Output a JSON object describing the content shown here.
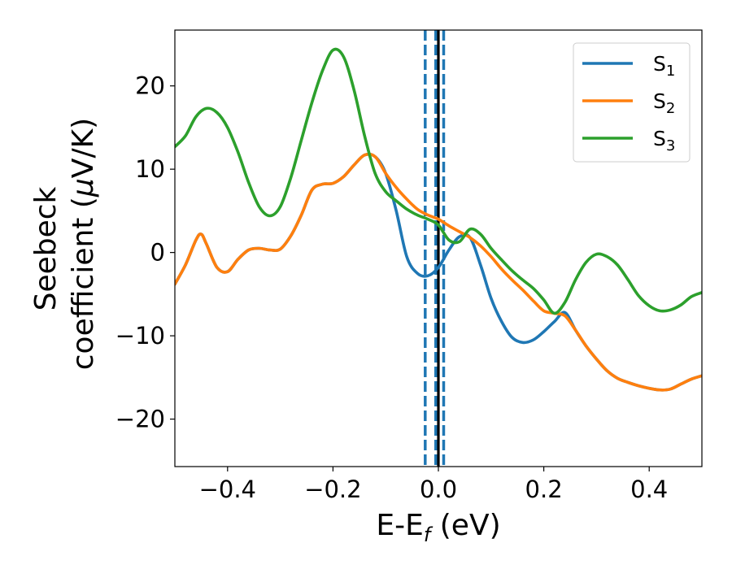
{
  "chart_data": {
    "type": "line",
    "xlabel": "E-E",
    "xlabel_sub": "f",
    "xlabel_unit": " (eV)",
    "ylabel_line1": "Seebeck",
    "ylabel_line2": "coefficient  (",
    "ylabel_mu": "μ",
    "ylabel_unit": "V/K)",
    "xlim": [
      -0.5,
      0.5
    ],
    "ylim": [
      -25.7,
      26.7
    ],
    "xticks": [
      -0.4,
      -0.2,
      0.0,
      0.2,
      0.4
    ],
    "xtick_labels": [
      "−0.4",
      "−0.2",
      "0.0",
      "0.2",
      "0.4"
    ],
    "yticks": [
      -20,
      -10,
      0,
      10,
      20
    ],
    "ytick_labels": [
      "−20",
      "−10",
      "0",
      "10",
      "20"
    ],
    "grid": false,
    "legend_position": "top-right",
    "vlines": [
      {
        "x": -0.025,
        "style": "dashed",
        "color": "#1f77b4"
      },
      {
        "x": -0.005,
        "style": "dashed",
        "color": "#1f77b4"
      },
      {
        "x": 0.0,
        "style": "solid",
        "color": "#000000"
      },
      {
        "x": 0.01,
        "style": "dashed",
        "color": "#1f77b4"
      }
    ],
    "series": [
      {
        "name": "S",
        "name_sub": "1",
        "color": "#1f77b4",
        "x": [
          -0.5,
          -0.48,
          -0.46,
          -0.45,
          -0.44,
          -0.42,
          -0.4,
          -0.38,
          -0.36,
          -0.34,
          -0.32,
          -0.3,
          -0.28,
          -0.26,
          -0.24,
          -0.22,
          -0.2,
          -0.18,
          -0.16,
          -0.14,
          -0.12,
          -0.1,
          -0.08,
          -0.06,
          -0.04,
          -0.02,
          0.0,
          0.02,
          0.04,
          0.06,
          0.08,
          0.1,
          0.12,
          0.14,
          0.16,
          0.18,
          0.2,
          0.22,
          0.24,
          0.26,
          0.28,
          0.3,
          0.32,
          0.34,
          0.36,
          0.38,
          0.4,
          0.42,
          0.44,
          0.46,
          0.48,
          0.5
        ],
        "y": [
          -3.8,
          -1.5,
          1.5,
          2.2,
          1.0,
          -1.8,
          -2.3,
          -0.8,
          0.3,
          0.5,
          0.3,
          0.4,
          2.0,
          4.5,
          7.5,
          8.2,
          8.3,
          9.1,
          10.5,
          11.7,
          11.5,
          9.5,
          5.0,
          -0.5,
          -2.5,
          -2.8,
          -1.8,
          0.3,
          1.9,
          1.8,
          -1.5,
          -5.5,
          -8.3,
          -10.2,
          -10.8,
          -10.5,
          -9.5,
          -8.3,
          -7.2,
          -9.3,
          -11.2,
          -12.8,
          -14.2,
          -15.1,
          -15.6,
          -16.0,
          -16.3,
          -16.5,
          -16.4,
          -15.8,
          -15.2,
          -14.8
        ]
      },
      {
        "name": "S",
        "name_sub": "2",
        "color": "#ff7f0e",
        "x": [
          -0.5,
          -0.48,
          -0.46,
          -0.45,
          -0.44,
          -0.42,
          -0.4,
          -0.38,
          -0.36,
          -0.34,
          -0.32,
          -0.3,
          -0.28,
          -0.26,
          -0.24,
          -0.22,
          -0.2,
          -0.18,
          -0.16,
          -0.14,
          -0.12,
          -0.1,
          -0.08,
          -0.06,
          -0.04,
          -0.02,
          0.0,
          0.02,
          0.04,
          0.06,
          0.08,
          0.1,
          0.12,
          0.14,
          0.16,
          0.18,
          0.2,
          0.22,
          0.24,
          0.26,
          0.28,
          0.3,
          0.32,
          0.34,
          0.36,
          0.38,
          0.4,
          0.42,
          0.44,
          0.46,
          0.48,
          0.5
        ],
        "y": [
          -3.8,
          -1.5,
          1.5,
          2.2,
          1.0,
          -1.8,
          -2.3,
          -0.8,
          0.3,
          0.5,
          0.3,
          0.4,
          2.0,
          4.5,
          7.5,
          8.2,
          8.3,
          9.1,
          10.5,
          11.7,
          11.5,
          9.5,
          7.8,
          6.4,
          5.2,
          4.5,
          4.0,
          3.2,
          2.5,
          1.8,
          0.8,
          -0.5,
          -2.0,
          -3.3,
          -4.5,
          -5.8,
          -7.0,
          -7.3,
          -7.6,
          -9.3,
          -11.2,
          -12.8,
          -14.2,
          -15.1,
          -15.6,
          -16.0,
          -16.3,
          -16.5,
          -16.4,
          -15.8,
          -15.2,
          -14.8
        ]
      },
      {
        "name": "S",
        "name_sub": "3",
        "color": "#2ca02c",
        "x": [
          -0.5,
          -0.48,
          -0.46,
          -0.44,
          -0.42,
          -0.4,
          -0.38,
          -0.36,
          -0.34,
          -0.32,
          -0.3,
          -0.28,
          -0.26,
          -0.24,
          -0.22,
          -0.2,
          -0.18,
          -0.16,
          -0.14,
          -0.12,
          -0.1,
          -0.08,
          -0.06,
          -0.04,
          -0.02,
          0.0,
          0.02,
          0.04,
          0.06,
          0.08,
          0.1,
          0.12,
          0.14,
          0.16,
          0.18,
          0.2,
          0.22,
          0.24,
          0.26,
          0.28,
          0.3,
          0.32,
          0.34,
          0.36,
          0.38,
          0.4,
          0.42,
          0.44,
          0.46,
          0.48,
          0.5
        ],
        "y": [
          12.7,
          14.0,
          16.3,
          17.3,
          16.8,
          15.0,
          12.0,
          8.4,
          5.5,
          4.4,
          5.5,
          9.0,
          13.5,
          18.0,
          21.8,
          24.3,
          23.5,
          19.5,
          14.0,
          9.5,
          7.3,
          6.2,
          5.2,
          4.5,
          4.0,
          3.3,
          1.5,
          1.3,
          2.8,
          2.2,
          0.5,
          -0.9,
          -2.2,
          -3.3,
          -4.3,
          -5.7,
          -7.3,
          -6.0,
          -3.3,
          -1.2,
          -0.2,
          -0.5,
          -1.5,
          -3.3,
          -5.2,
          -6.4,
          -7.0,
          -6.9,
          -6.3,
          -5.3,
          -4.8
        ]
      }
    ]
  }
}
